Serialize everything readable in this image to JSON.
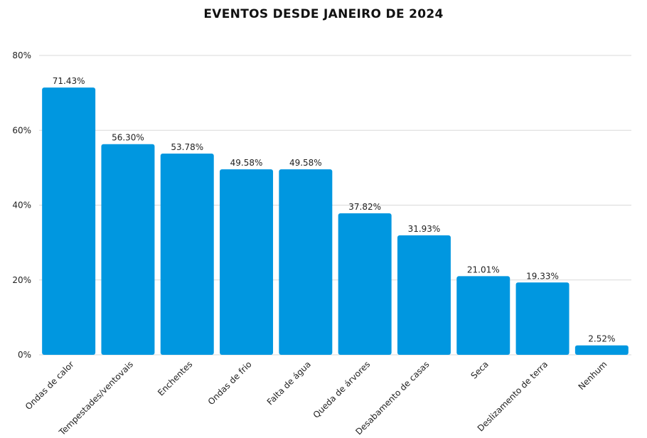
{
  "chart_data": {
    "type": "bar",
    "title": "EVENTOS DESDE JANEIRO DE 2024",
    "xlabel": "",
    "ylabel": "",
    "categories": [
      "Ondas de calor",
      "Tempestades/ventovais",
      "Enchentes",
      "Ondas de frio",
      "Falta de água",
      "Queda de árvores",
      "Desabamento de casas",
      "Seca",
      "Deslizamento de terra",
      "Nenhum"
    ],
    "values": [
      71.43,
      56.3,
      53.78,
      49.58,
      49.58,
      37.82,
      31.93,
      21.01,
      19.33,
      2.52
    ],
    "value_labels": [
      "71.43%",
      "56.30%",
      "53.78%",
      "49.58%",
      "49.58%",
      "37.82%",
      "31.93%",
      "21.01%",
      "19.33%",
      "2.52%"
    ],
    "ylim": [
      0,
      80
    ],
    "yticks": [
      0,
      20,
      40,
      60,
      80
    ],
    "ytick_labels": [
      "0%",
      "20%",
      "40%",
      "60%",
      "80%"
    ],
    "grid": true,
    "legend": "none",
    "bar_color": "#0097E0",
    "grid_color": "#d9d9d9"
  }
}
